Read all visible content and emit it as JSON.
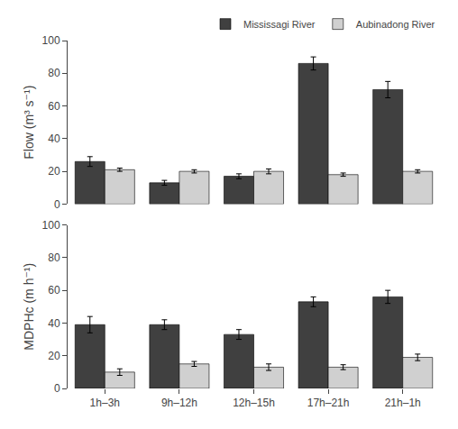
{
  "chart_data": [
    {
      "type": "bar",
      "ylabel": "Flow (m³ s⁻¹)",
      "categories": [
        "1h–3h",
        "9h–12h",
        "12h–15h",
        "17h–21h",
        "21h–1h"
      ],
      "series": [
        {
          "name": "Mississagi River",
          "color": "#404040",
          "values": [
            26,
            13,
            17,
            86,
            70
          ],
          "errors": [
            3,
            1.5,
            1.5,
            4,
            5
          ]
        },
        {
          "name": "Aubinadong River",
          "color": "#d0d0d0",
          "values": [
            21,
            20,
            20,
            18,
            20
          ],
          "errors": [
            1,
            1,
            1.5,
            1,
            1
          ]
        }
      ],
      "ylim": [
        0,
        100
      ],
      "yticks": [
        0,
        20,
        40,
        60,
        80,
        100
      ],
      "grid": false,
      "legend": "upper right",
      "tick_labels": "y"
    },
    {
      "type": "bar",
      "ylabel": "MDPHc (m h⁻¹)",
      "categories": [
        "1h–3h",
        "9h–12h",
        "12h–15h",
        "17h–21h",
        "21h–1h"
      ],
      "series": [
        {
          "name": "Mississagi River",
          "color": "#404040",
          "values": [
            39,
            39,
            33,
            53,
            56
          ],
          "errors": [
            5,
            3,
            3,
            3,
            4
          ]
        },
        {
          "name": "Aubinadong River",
          "color": "#d0d0d0",
          "values": [
            10,
            15,
            13,
            13,
            19
          ],
          "errors": [
            2,
            1.5,
            2,
            1.5,
            2
          ]
        }
      ],
      "ylim": [
        0,
        100
      ],
      "yticks": [
        0,
        20,
        40,
        60,
        80,
        100
      ],
      "grid": false
    }
  ]
}
